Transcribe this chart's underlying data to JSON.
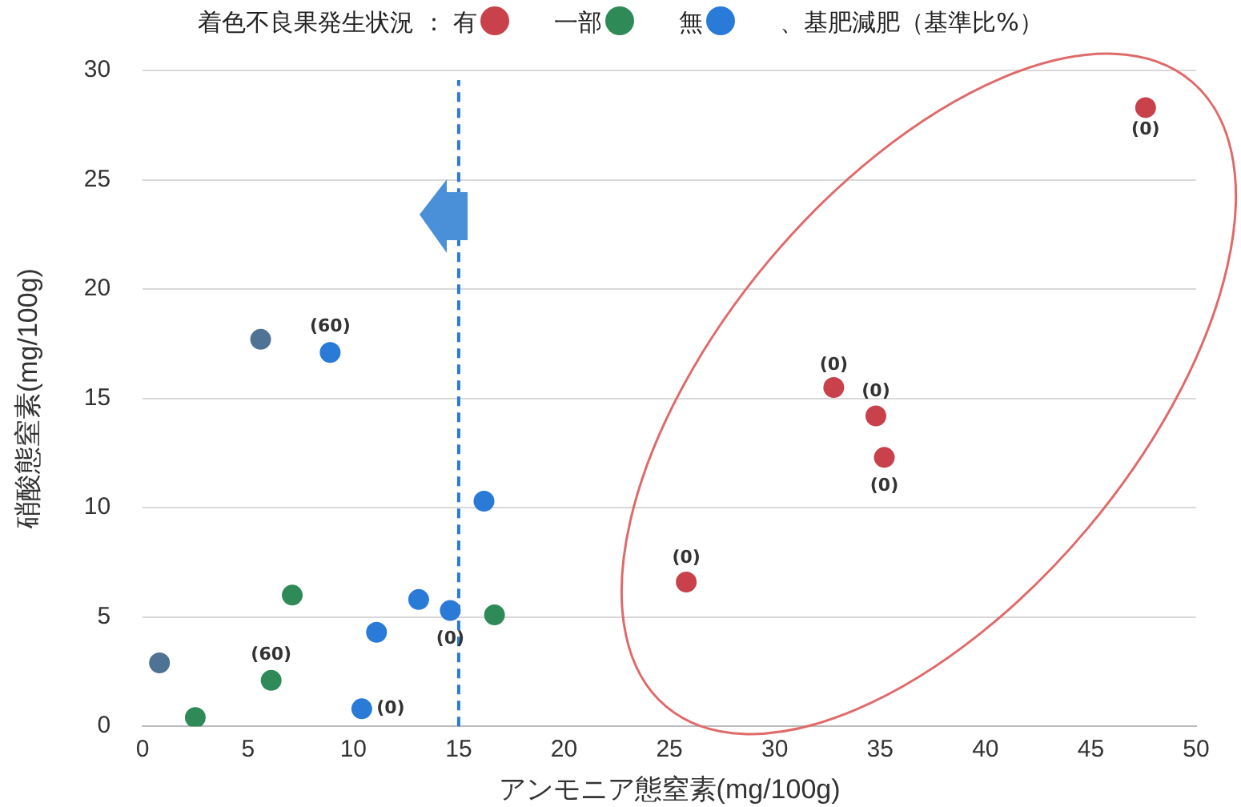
{
  "chart_data": {
    "type": "scatter",
    "legend_title": "着色不良果発生状況 ：",
    "legend": "top",
    "xlabel": "アンモニア態窒素(mg/100g)",
    "ylabel": "硝酸態窒素(mg/100g)",
    "xlim": [
      0,
      50
    ],
    "xticks": [
      0,
      5,
      10,
      15,
      20,
      25,
      30,
      35,
      40,
      45,
      50
    ],
    "ylim": [
      0,
      30
    ],
    "yticks": [
      0,
      5,
      10,
      15,
      20,
      25,
      30
    ],
    "grid": "y",
    "marker": "circle",
    "series": [
      {
        "name": "有",
        "color": "#c8414b",
        "x": [
          47.6,
          32.8,
          34.8,
          35.2,
          25.8
        ],
        "values": [
          28.3,
          15.5,
          14.2,
          12.3,
          6.6
        ]
      },
      {
        "name": "一部",
        "color": "#2e8b57",
        "x": [
          7.1,
          16.7,
          6.1,
          2.5
        ],
        "values": [
          6.0,
          5.1,
          2.1,
          0.4
        ]
      },
      {
        "name": "無",
        "color": "#2a7ad8",
        "x": [
          8.9,
          16.2,
          11.1,
          13.1,
          14.6,
          10.4
        ],
        "values": [
          17.1,
          10.3,
          4.3,
          5.8,
          5.3,
          0.8
        ]
      },
      {
        "color": "#4f7394",
        "x": [
          5.6,
          0.8
        ],
        "values": [
          17.7,
          2.9
        ]
      }
    ],
    "ref_lines": [
      {
        "axis": "x",
        "value": 15,
        "color": "#2a7ad8",
        "line_style": "dashed"
      }
    ],
    "annotations": [
      "、基肥減肥（基準比%）",
      {
        "text": "(0)",
        "x": 47.6,
        "y": 28.3
      },
      {
        "text": "(0)",
        "x": 32.8,
        "y": 15.5
      },
      {
        "text": "(0)",
        "x": 34.8,
        "y": 14.2
      },
      {
        "text": "(0)",
        "x": 35.2,
        "y": 12.3
      },
      {
        "text": "(0)",
        "x": 25.8,
        "y": 6.6
      },
      {
        "text": "(60)",
        "x": 8.9,
        "y": 17.1
      },
      {
        "text": "(60)",
        "x": 6.1,
        "y": 2.1
      },
      {
        "text": "(0)",
        "x": 10.4,
        "y": 0.8
      },
      {
        "text": "(0)",
        "x": 14.6,
        "y": 5.3
      }
    ]
  }
}
